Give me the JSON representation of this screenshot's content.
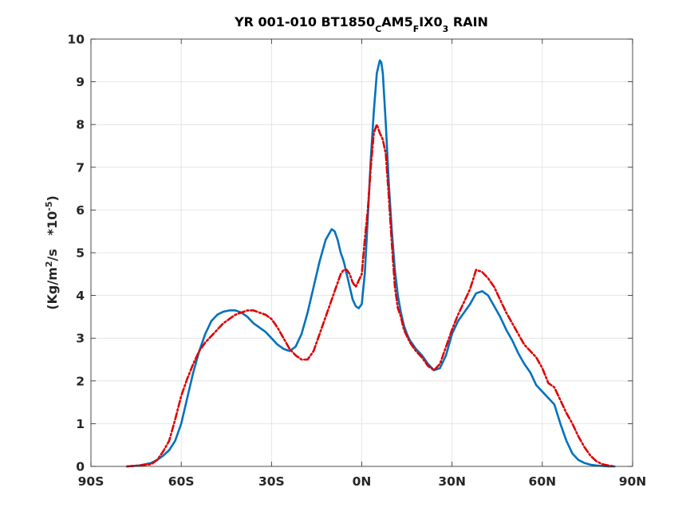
{
  "chart_data": {
    "type": "line",
    "title": "YR 001-010 BT1850CAM5FIX03 RAIN",
    "title_parts": [
      {
        "text": "YR 001-010 BT1850",
        "sub": false
      },
      {
        "text": "C",
        "sub": true
      },
      {
        "text": "AM5",
        "sub": false
      },
      {
        "text": "F",
        "sub": true
      },
      {
        "text": "IX0",
        "sub": false
      },
      {
        "text": "3",
        "sub": true
      },
      {
        "text": " RAIN",
        "sub": false
      }
    ],
    "xlabel": "",
    "ylabel": "(Kg/m^2/s   *10^-5)",
    "ylabel_parts": [
      {
        "text": "(Kg/m",
        "sup": false
      },
      {
        "text": "2",
        "sup": true
      },
      {
        "text": "/s   *10",
        "sup": false
      },
      {
        "text": "-5",
        "sup": true
      },
      {
        "text": ")",
        "sup": false
      }
    ],
    "xlim": [
      -90,
      90
    ],
    "ylim": [
      0,
      10
    ],
    "x_ticks": [
      -90,
      -60,
      -30,
      0,
      30,
      60,
      90
    ],
    "x_tick_labels": [
      "90S",
      "60S",
      "30S",
      "0N",
      "30N",
      "60N",
      "90N"
    ],
    "y_ticks": [
      0,
      1,
      2,
      3,
      4,
      5,
      6,
      7,
      8,
      9,
      10
    ],
    "y_tick_labels": [
      "0",
      "1",
      "2",
      "3",
      "4",
      "5",
      "6",
      "7",
      "8",
      "9",
      "10"
    ],
    "grid": true,
    "series": [
      {
        "color": "#0072BD",
        "style": "solid",
        "x": [
          -78,
          -74,
          -70,
          -68,
          -66,
          -64,
          -62,
          -60,
          -58,
          -56,
          -54,
          -52,
          -50,
          -48,
          -46,
          -44,
          -42,
          -40,
          -38,
          -36,
          -34,
          -32,
          -30,
          -28,
          -26,
          -24,
          -22,
          -20,
          -18,
          -16,
          -14,
          -12,
          -10,
          -9,
          -8,
          -7,
          -6,
          -5,
          -4,
          -3,
          -2,
          -1,
          0,
          1,
          2,
          3,
          4,
          5,
          6,
          6.5,
          7,
          7.5,
          8,
          9,
          10,
          11,
          12,
          13,
          14,
          15,
          16,
          17,
          18,
          20,
          22,
          24,
          26,
          28,
          30,
          32,
          34,
          36,
          38,
          40,
          42,
          44,
          46,
          48,
          50,
          52,
          54,
          56,
          58,
          60,
          62,
          64,
          66,
          68,
          70,
          72,
          74,
          76,
          78,
          80,
          82,
          84
        ],
        "y": [
          0.0,
          0.02,
          0.08,
          0.15,
          0.25,
          0.38,
          0.6,
          1.0,
          1.6,
          2.2,
          2.7,
          3.1,
          3.4,
          3.55,
          3.62,
          3.65,
          3.65,
          3.6,
          3.5,
          3.35,
          3.25,
          3.15,
          3.0,
          2.85,
          2.75,
          2.7,
          2.8,
          3.1,
          3.6,
          4.2,
          4.8,
          5.3,
          5.55,
          5.5,
          5.3,
          5.0,
          4.8,
          4.5,
          4.2,
          3.9,
          3.75,
          3.7,
          3.8,
          4.5,
          5.8,
          7.2,
          8.3,
          9.2,
          9.5,
          9.45,
          9.2,
          8.6,
          8.0,
          6.6,
          5.5,
          4.6,
          4.0,
          3.6,
          3.3,
          3.1,
          2.95,
          2.85,
          2.75,
          2.6,
          2.4,
          2.25,
          2.3,
          2.6,
          3.1,
          3.4,
          3.6,
          3.8,
          4.05,
          4.1,
          4.0,
          3.75,
          3.5,
          3.2,
          2.95,
          2.65,
          2.4,
          2.2,
          1.9,
          1.75,
          1.6,
          1.45,
          1.0,
          0.6,
          0.3,
          0.15,
          0.08,
          0.04,
          0.02,
          0.01,
          0.0,
          0.0
        ]
      },
      {
        "color": "#E00000",
        "style": "dashed",
        "x": [
          -78,
          -74,
          -70,
          -68,
          -66,
          -64,
          -62,
          -60,
          -58,
          -56,
          -54,
          -52,
          -50,
          -48,
          -46,
          -44,
          -42,
          -40,
          -38,
          -36,
          -34,
          -32,
          -30,
          -28,
          -26,
          -24,
          -22,
          -20,
          -18,
          -16,
          -14,
          -12,
          -10,
          -9,
          -8,
          -7,
          -6,
          -5,
          -4,
          -3,
          -2,
          -1,
          0,
          1,
          2,
          3,
          4,
          5,
          6,
          7,
          8,
          9,
          10,
          11,
          12,
          13,
          14,
          15,
          16,
          17,
          18,
          20,
          22,
          24,
          26,
          28,
          30,
          32,
          34,
          36,
          38,
          40,
          42,
          44,
          46,
          48,
          50,
          52,
          54,
          56,
          58,
          60,
          62,
          64,
          66,
          68,
          70,
          72,
          74,
          76,
          78,
          80,
          82,
          84
        ],
        "y": [
          0.0,
          0.02,
          0.05,
          0.15,
          0.35,
          0.6,
          1.1,
          1.65,
          2.05,
          2.4,
          2.7,
          2.9,
          3.05,
          3.2,
          3.35,
          3.45,
          3.55,
          3.6,
          3.65,
          3.65,
          3.6,
          3.55,
          3.45,
          3.25,
          3.0,
          2.75,
          2.6,
          2.5,
          2.5,
          2.7,
          3.1,
          3.5,
          3.9,
          4.1,
          4.3,
          4.5,
          4.6,
          4.6,
          4.5,
          4.3,
          4.2,
          4.35,
          4.5,
          5.3,
          6.0,
          7.0,
          7.8,
          8.0,
          7.8,
          7.65,
          7.3,
          6.3,
          5.2,
          4.2,
          3.7,
          3.5,
          3.2,
          3.05,
          2.9,
          2.8,
          2.7,
          2.55,
          2.35,
          2.25,
          2.4,
          2.8,
          3.2,
          3.55,
          3.85,
          4.15,
          4.6,
          4.55,
          4.4,
          4.2,
          3.9,
          3.6,
          3.35,
          3.1,
          2.85,
          2.7,
          2.55,
          2.3,
          1.95,
          1.85,
          1.55,
          1.25,
          1.0,
          0.7,
          0.45,
          0.25,
          0.12,
          0.05,
          0.02,
          0.0
        ]
      }
    ]
  }
}
